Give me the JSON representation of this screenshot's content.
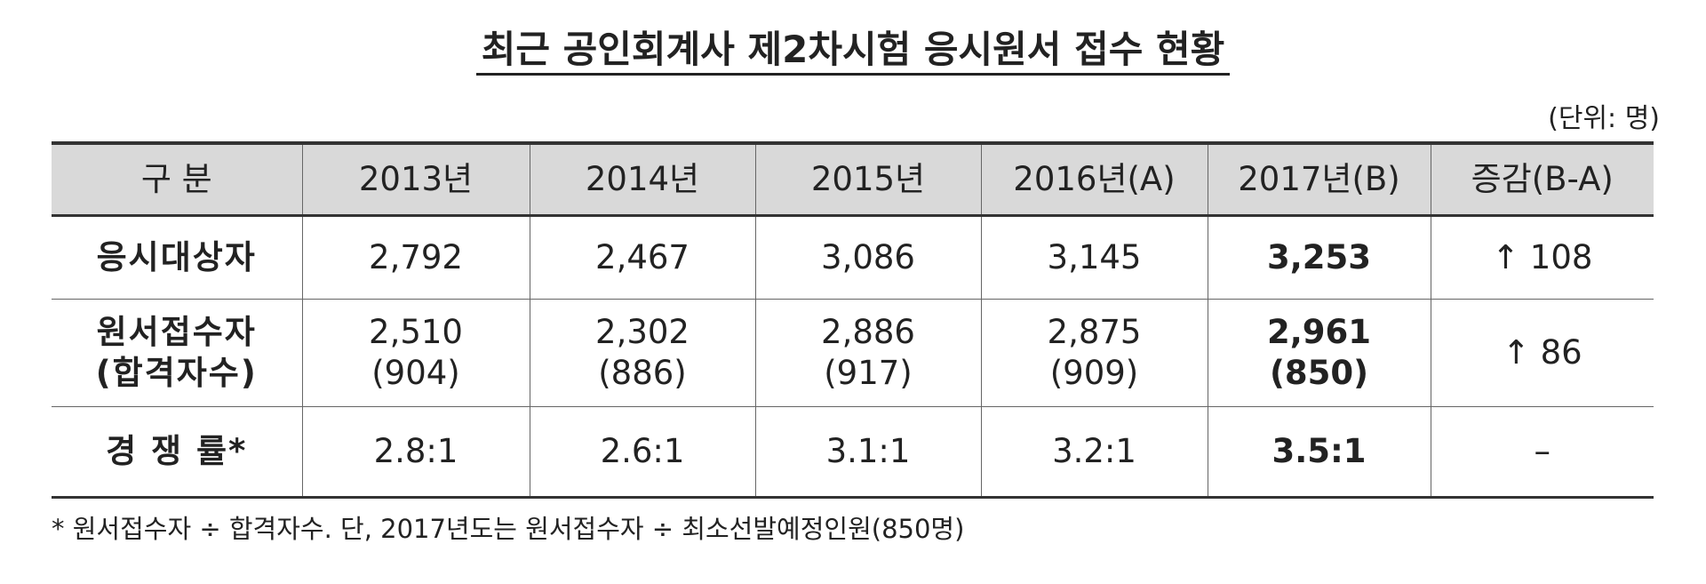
{
  "title": "최근 공인회계사 제2차시험 응시원서 접수 현황",
  "unit": "(단위: 명)",
  "table": {
    "header": [
      "구   분",
      "2013년",
      "2014년",
      "2015년",
      "2016년(A)",
      "2017년(B)",
      "증감(B-A)"
    ],
    "rows": [
      [
        [
          "응시대상자"
        ],
        [
          "2,792"
        ],
        [
          "2,467"
        ],
        [
          "3,086"
        ],
        [
          "3,145"
        ],
        [
          "3,253"
        ],
        [
          "↑ 108"
        ]
      ],
      [
        [
          "원서접수자",
          "(합격자수)"
        ],
        [
          "2,510",
          "(904)"
        ],
        [
          "2,302",
          "(886)"
        ],
        [
          "2,886",
          "(917)"
        ],
        [
          "2,875",
          "(909)"
        ],
        [
          "2,961",
          "(850)"
        ],
        [
          "↑ 86"
        ]
      ],
      [
        [
          "경 쟁 률*"
        ],
        [
          "2.8:1"
        ],
        [
          "2.6:1"
        ],
        [
          "3.1:1"
        ],
        [
          "3.2:1"
        ],
        [
          "3.5:1"
        ],
        [
          "–"
        ]
      ]
    ]
  },
  "footnote": "* 원서접수자 ÷ 합격자수. 단, 2017년도는 원서접수자 ÷ 최소선발예정인원(850명)"
}
